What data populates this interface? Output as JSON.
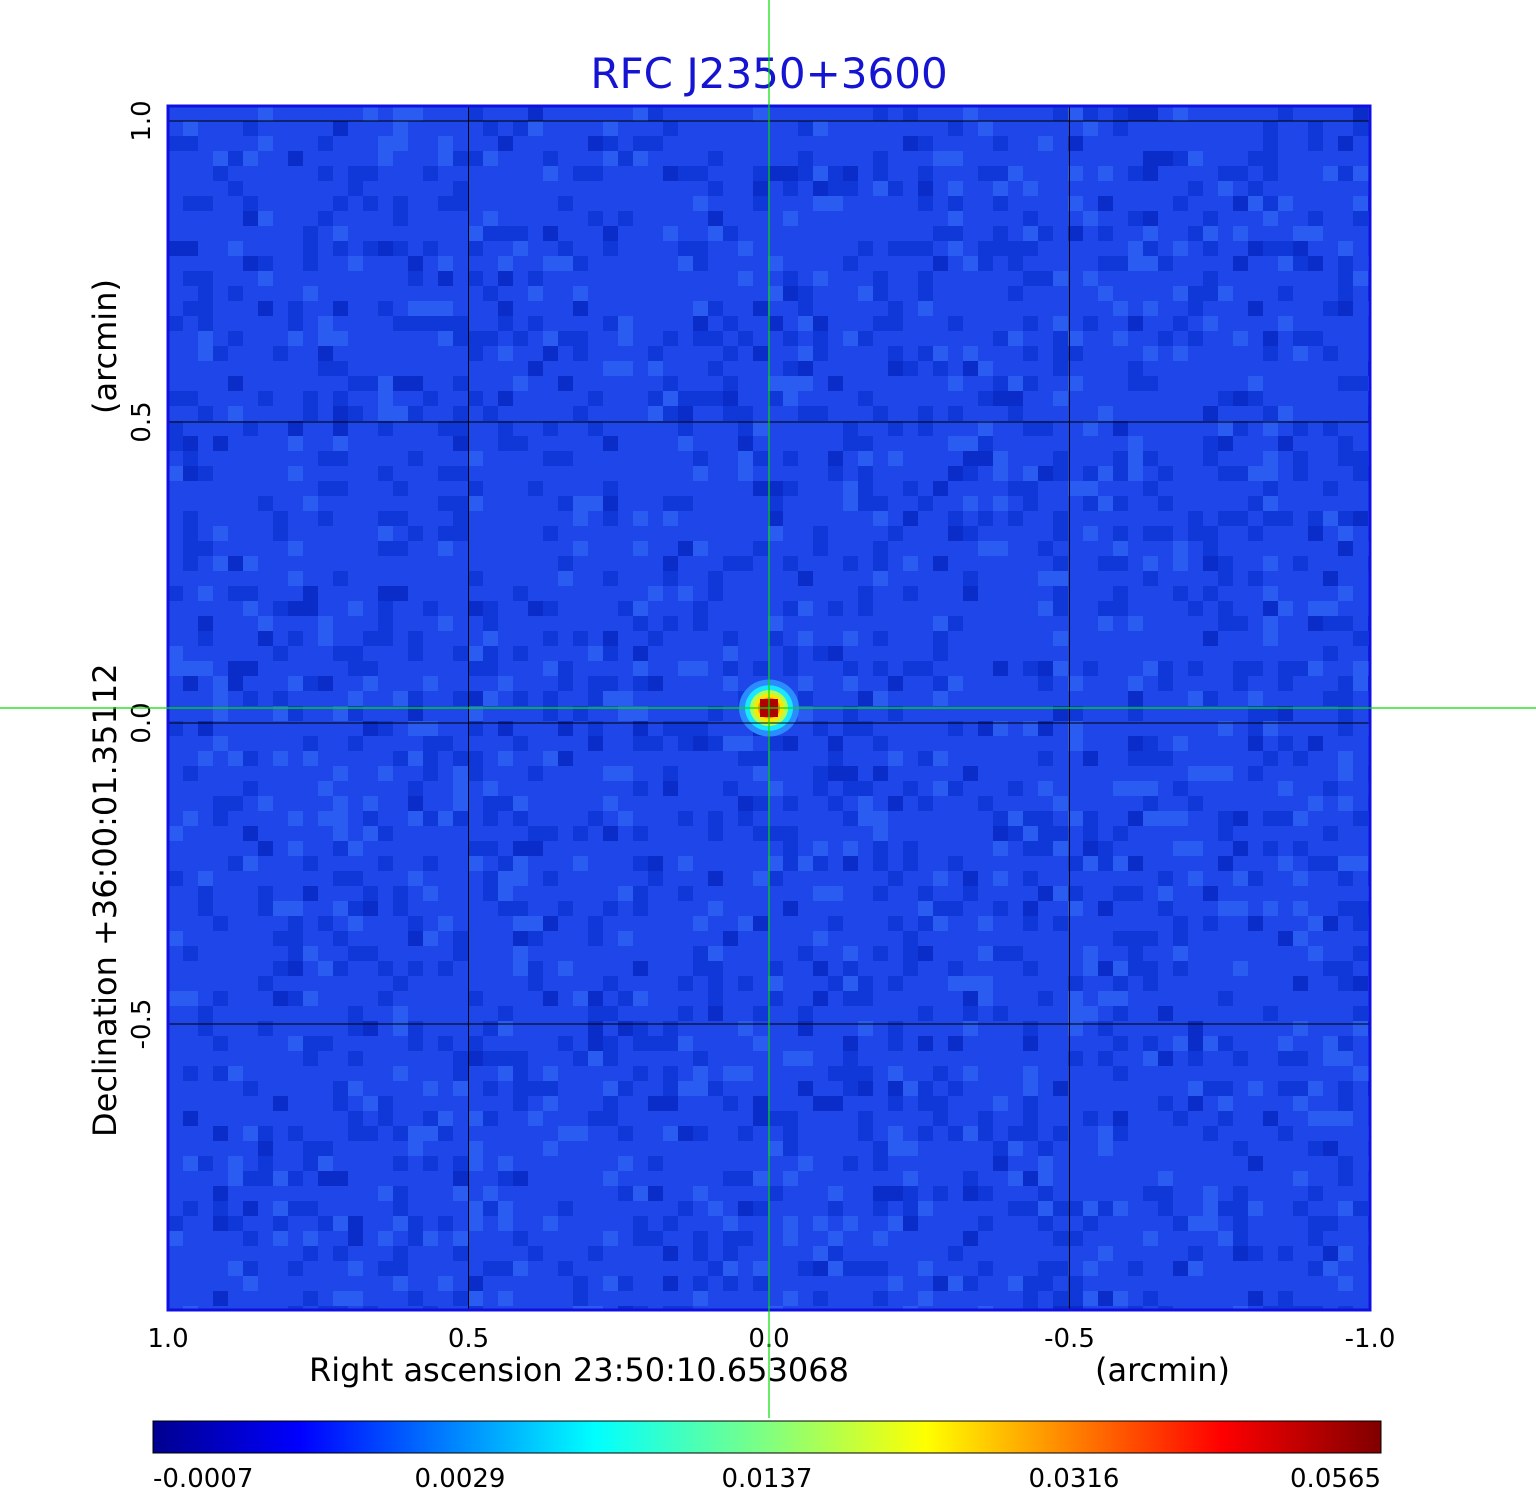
{
  "chart_data": {
    "type": "heatmap",
    "title": "RFC J2350+3600",
    "xlabel": "Right ascension  23:50:10.653068",
    "xunit": "(arcmin)",
    "ylabel": "Declination  +36:00:01.35112",
    "yunit": "(arcmin)",
    "xlim": [
      1.0,
      -1.0
    ],
    "ylim": [
      -1.0,
      1.0
    ],
    "x_ticks": [
      "1.0",
      "0.5",
      "0.0",
      "-0.5",
      "-1.0"
    ],
    "y_ticks": [
      "1.0",
      "0.5",
      "0.0",
      "-0.5"
    ],
    "grid": true,
    "crosshair": {
      "x": 0.0,
      "y": 0.0,
      "color": "#00e000"
    },
    "colormap": "jet",
    "colorbar": {
      "orientation": "horizontal",
      "placement": "bottom",
      "ticks": [
        "-0.0007",
        "0.0029",
        "0.0137",
        "0.0316",
        "0.0565"
      ]
    },
    "source": {
      "x": 0.0,
      "y": 0.0,
      "peak": 0.0565
    },
    "colors": {
      "title": "#1414d2",
      "background": "#1e46e8",
      "grid": "#000000",
      "crosshair": "#00e000"
    }
  }
}
